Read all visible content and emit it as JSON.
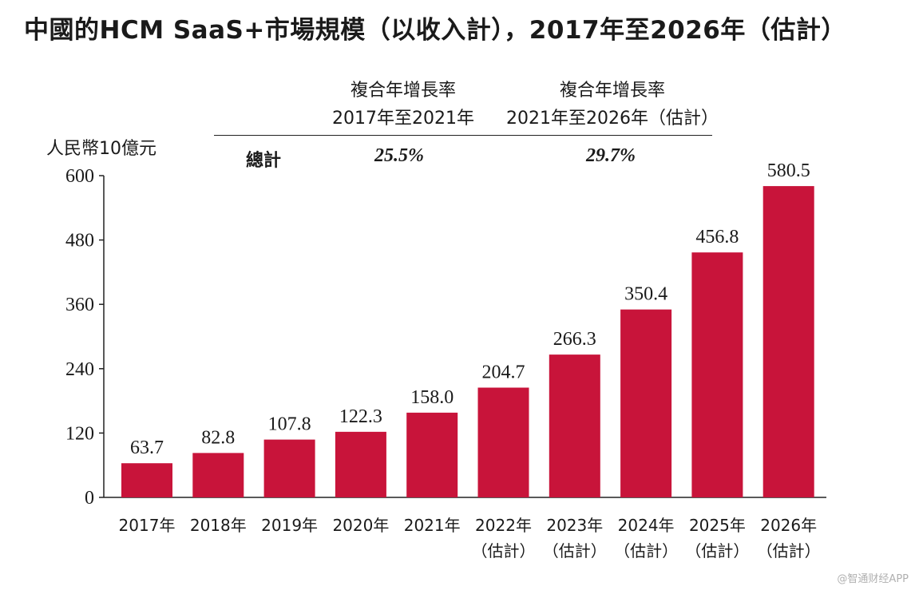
{
  "header": {
    "title": "中國的HCM SaaS+市場規模（以收入計），2017年至2026年（估計）"
  },
  "cagr_table": {
    "col1_line1": "複合年增長率",
    "col1_line2": "2017年至2021年",
    "col2_line1": "複合年增長率",
    "col2_line2": "2021年至2026年（估計）",
    "row_label": "總計",
    "col1_value": "25.5%",
    "col2_value": "29.7%"
  },
  "y_unit": "人民幣10億元",
  "watermark": "@智通财经APP",
  "colors": {
    "bar": "#c8143a",
    "axis": "#222222"
  },
  "chart_data": {
    "type": "bar",
    "categories": [
      "2017年",
      "2018年",
      "2019年",
      "2020年",
      "2021年",
      "2022年",
      "2023年",
      "2024年",
      "2025年",
      "2026年"
    ],
    "category_notes": [
      "",
      "",
      "",
      "",
      "",
      "（估計）",
      "（估計）",
      "（估計）",
      "（估計）",
      "（估計）"
    ],
    "values": [
      63.7,
      82.8,
      107.8,
      122.3,
      158.0,
      204.7,
      266.3,
      350.4,
      456.8,
      580.5
    ],
    "value_labels": [
      "63.7",
      "82.8",
      "107.8",
      "122.3",
      "158.0",
      "204.7",
      "266.3",
      "350.4",
      "456.8",
      "580.5"
    ],
    "ylabel": "人民幣10億元",
    "ylim": [
      0,
      600
    ],
    "yticks": [
      0,
      120,
      240,
      360,
      480,
      600
    ],
    "grid": false,
    "legend": "none"
  }
}
